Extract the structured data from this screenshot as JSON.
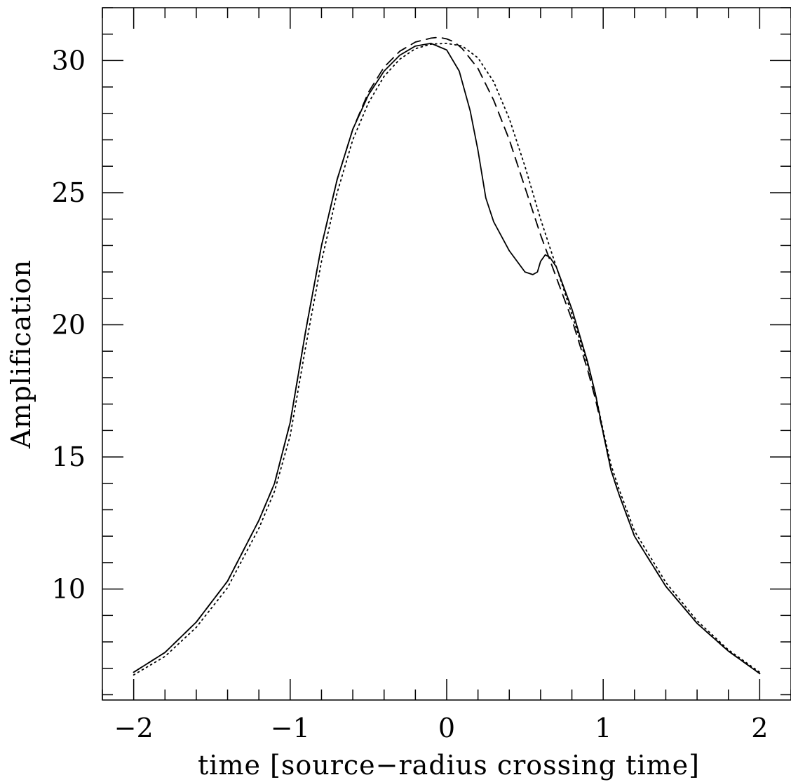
{
  "chart_data": {
    "type": "line",
    "title": "",
    "xlabel": "time [source−radius crossing time]",
    "ylabel": "Amplification",
    "xlim": [
      -2.2,
      2.2
    ],
    "ylim": [
      5.8,
      32.0
    ],
    "x_ticks": [
      -2,
      -1,
      0,
      1,
      2
    ],
    "x_tick_labels": [
      "−2",
      "−1",
      "0",
      "1",
      "2"
    ],
    "y_ticks": [
      10,
      15,
      20,
      25,
      30
    ],
    "y_tick_labels": [
      "10",
      "15",
      "20",
      "25",
      "30"
    ],
    "x_minor_step": 0.2,
    "y_minor_step": 1,
    "grid": false,
    "legend": "none",
    "series": [
      {
        "line_style": "solid",
        "color": "#000000",
        "x": [
          -2.0,
          -1.8,
          -1.6,
          -1.4,
          -1.2,
          -1.1,
          -1.0,
          -0.9,
          -0.8,
          -0.7,
          -0.6,
          -0.5,
          -0.4,
          -0.3,
          -0.2,
          -0.1,
          0.0,
          0.08,
          0.15,
          0.2,
          0.25,
          0.3,
          0.4,
          0.5,
          0.55,
          0.58,
          0.6,
          0.63,
          0.66,
          0.7,
          0.8,
          0.9,
          0.95,
          1.0,
          1.05,
          1.1,
          1.2,
          1.4,
          1.6,
          1.8,
          2.0
        ],
        "y": [
          6.85,
          7.6,
          8.75,
          10.3,
          12.6,
          14.0,
          16.3,
          19.8,
          23.0,
          25.5,
          27.4,
          28.7,
          29.6,
          30.2,
          30.55,
          30.65,
          30.4,
          29.6,
          28.1,
          26.6,
          24.8,
          23.9,
          22.8,
          22.0,
          21.9,
          22.0,
          22.4,
          22.65,
          22.55,
          22.2,
          20.6,
          18.6,
          17.4,
          15.9,
          14.5,
          13.6,
          12.0,
          10.1,
          8.7,
          7.65,
          6.8
        ]
      },
      {
        "line_style": "dashed",
        "color": "#000000",
        "x": [
          -2.0,
          -1.8,
          -1.6,
          -1.4,
          -1.2,
          -1.1,
          -1.0,
          -0.9,
          -0.8,
          -0.7,
          -0.6,
          -0.5,
          -0.4,
          -0.3,
          -0.2,
          -0.1,
          -0.05,
          0.0,
          0.05,
          0.1,
          0.2,
          0.3,
          0.4,
          0.5,
          0.6,
          0.7,
          0.8,
          0.9,
          0.95,
          1.0,
          1.05,
          1.1,
          1.2,
          1.4,
          1.6,
          1.8,
          2.0
        ],
        "y": [
          6.85,
          7.6,
          8.75,
          10.3,
          12.6,
          14.0,
          16.3,
          19.8,
          23.0,
          25.5,
          27.4,
          28.8,
          29.75,
          30.35,
          30.7,
          30.85,
          30.88,
          30.82,
          30.7,
          30.45,
          29.7,
          28.5,
          27.0,
          25.2,
          23.4,
          21.8,
          20.2,
          18.3,
          17.2,
          15.9,
          14.5,
          13.6,
          12.0,
          10.1,
          8.7,
          7.65,
          6.8
        ]
      },
      {
        "line_style": "dotted",
        "color": "#000000",
        "x": [
          -2.0,
          -1.8,
          -1.6,
          -1.4,
          -1.2,
          -1.1,
          -1.0,
          -0.9,
          -0.8,
          -0.7,
          -0.6,
          -0.5,
          -0.4,
          -0.3,
          -0.2,
          -0.1,
          0.0,
          0.1,
          0.2,
          0.3,
          0.4,
          0.5,
          0.6,
          0.7,
          0.8,
          0.9,
          0.95,
          1.0,
          1.05,
          1.1,
          1.2,
          1.4,
          1.6,
          1.8,
          2.0
        ],
        "y": [
          6.75,
          7.45,
          8.55,
          10.05,
          12.3,
          13.7,
          15.8,
          19.2,
          22.4,
          25.0,
          27.0,
          28.4,
          29.4,
          30.05,
          30.45,
          30.62,
          30.65,
          30.55,
          30.1,
          29.2,
          27.8,
          26.0,
          24.0,
          22.2,
          20.4,
          18.5,
          17.4,
          16.0,
          14.7,
          13.8,
          12.2,
          10.25,
          8.8,
          7.7,
          6.85
        ]
      }
    ]
  }
}
